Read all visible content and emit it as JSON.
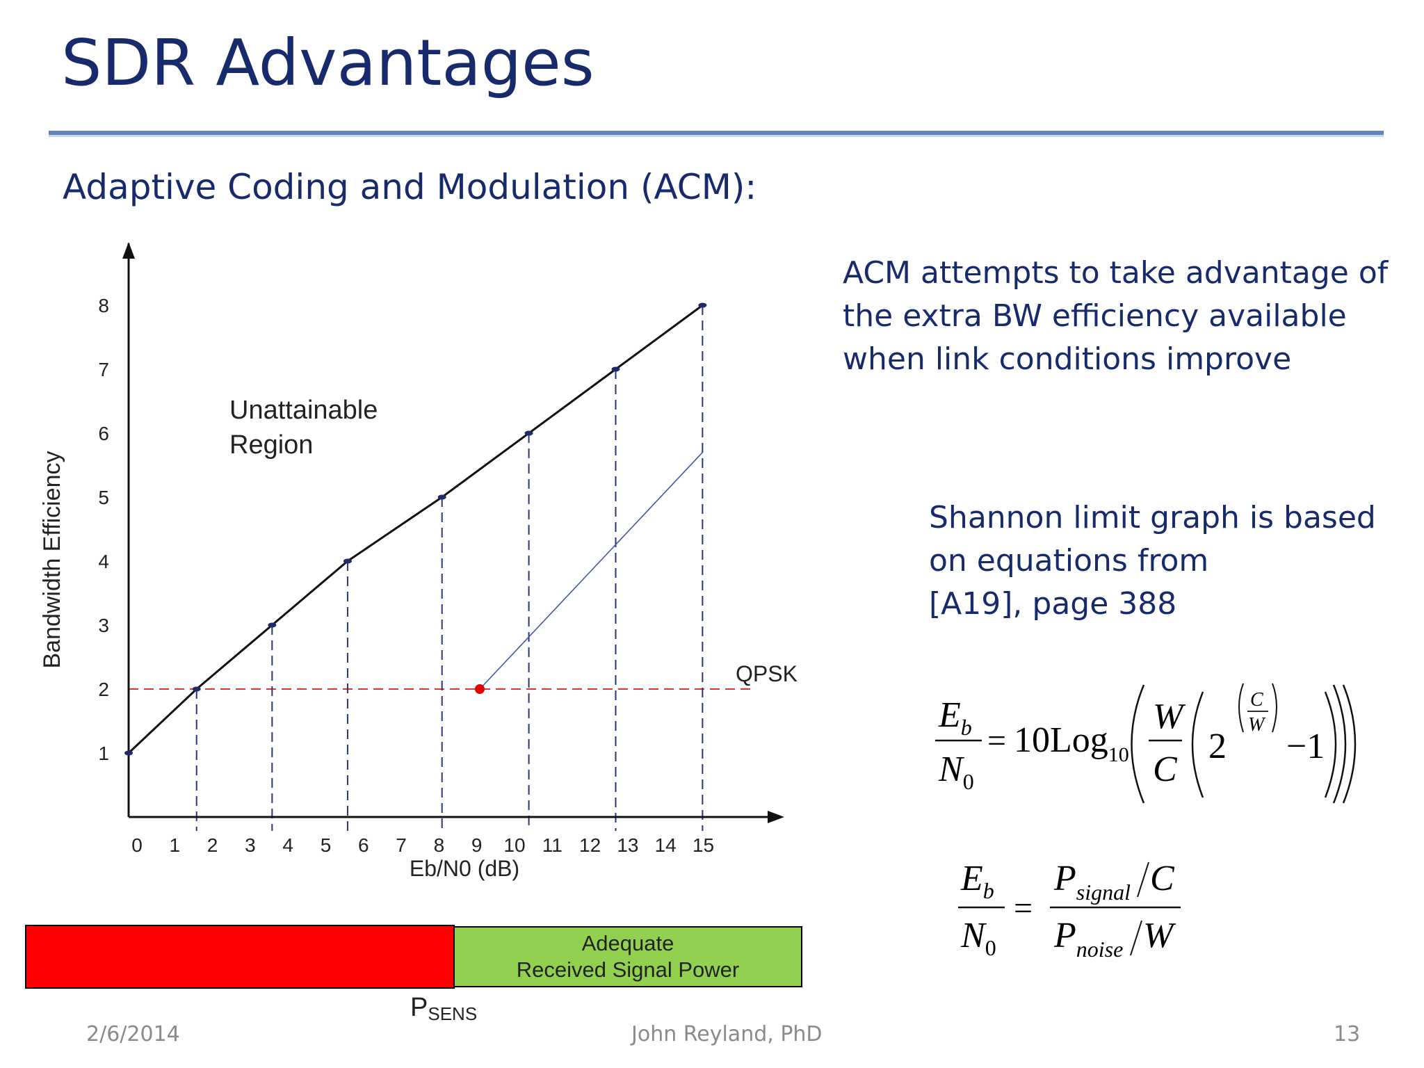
{
  "slide": {
    "title": "SDR Advantages",
    "subtitle": "Adaptive Coding and Modulation (ACM):",
    "paragraph1": [
      "ACM attempts to take advantage of",
      "the extra BW efficiency available",
      "when link conditions improve"
    ],
    "paragraph2": [
      "Shannon limit graph is based",
      "on equations from",
      "[A19], page 388"
    ],
    "footer": {
      "date": "2/6/2014",
      "author": "John Reyland, PhD",
      "page": "13"
    }
  },
  "chart_data": {
    "type": "line",
    "xlabel": "Eb/N0 (dB)",
    "ylabel": "Bandwidth Efficiency",
    "x_ticks": [
      "0",
      "1",
      "2",
      "3",
      "4",
      "5",
      "6",
      "7",
      "8",
      "9",
      "10",
      "11",
      "12",
      "13",
      "14",
      "15"
    ],
    "y_ticks": [
      "1",
      "2",
      "3",
      "4",
      "5",
      "6",
      "7",
      "8"
    ],
    "xlim": [
      0,
      16.5
    ],
    "ylim": [
      0,
      9
    ],
    "series": [
      {
        "points": [
          [
            0,
            1
          ],
          [
            1.8,
            2
          ],
          [
            3.8,
            3
          ],
          [
            5.8,
            4
          ],
          [
            8.3,
            5
          ],
          [
            10.6,
            6
          ],
          [
            12.9,
            7
          ],
          [
            15.2,
            8
          ]
        ],
        "color": "#111111"
      },
      {
        "points": [
          [
            9.3,
            2
          ],
          [
            15.2,
            5.7
          ]
        ],
        "color": "#3f57a6"
      }
    ],
    "reference_line": {
      "y": 2,
      "label": "QPSK",
      "color": "#e83030"
    },
    "marker": {
      "x": 9.3,
      "y": 2,
      "color": "#e00000"
    },
    "annotation": [
      "Unattainable",
      "Region"
    ],
    "drop_line_color": "#27347a"
  },
  "signal_bar": {
    "green_label": [
      "Adequate",
      "Received Signal Power"
    ],
    "psens_main": "P",
    "psens_sub": "SENS"
  },
  "equations": {
    "eq1": {
      "lhs_num": "E",
      "lhs_num_sub": "b",
      "lhs_den": "N",
      "lhs_den_sub": "0",
      "coef": "10Log",
      "coef_sub": "10",
      "w": "W",
      "c": "C",
      "two": "2",
      "minus_one": "−1"
    },
    "eq2": {
      "lhs_num": "E",
      "lhs_num_sub": "b",
      "lhs_den": "N",
      "lhs_den_sub": "0",
      "p": "P",
      "signal": "signal",
      "noise": "noise",
      "c": "C",
      "w": "W"
    }
  }
}
